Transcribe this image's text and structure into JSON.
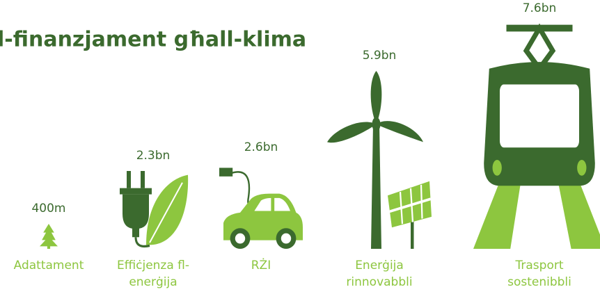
{
  "chart_data": {
    "type": "pictograph",
    "title": "l-finanzjament għall-klima",
    "categories": [
      "Adattament",
      "Effiċjenza fl-enerġija",
      "RŻI",
      "Enerġija rinnovabbli",
      "Trasport sostenibbli"
    ],
    "values": [
      0.4,
      2.3,
      2.6,
      5.9,
      7.6
    ],
    "value_labels": [
      "400m",
      "2.3bn",
      "2.6bn",
      "5.9bn",
      "7.6bn"
    ],
    "dark_color": "#3b6a2e",
    "light_color": "#8dc63f"
  }
}
